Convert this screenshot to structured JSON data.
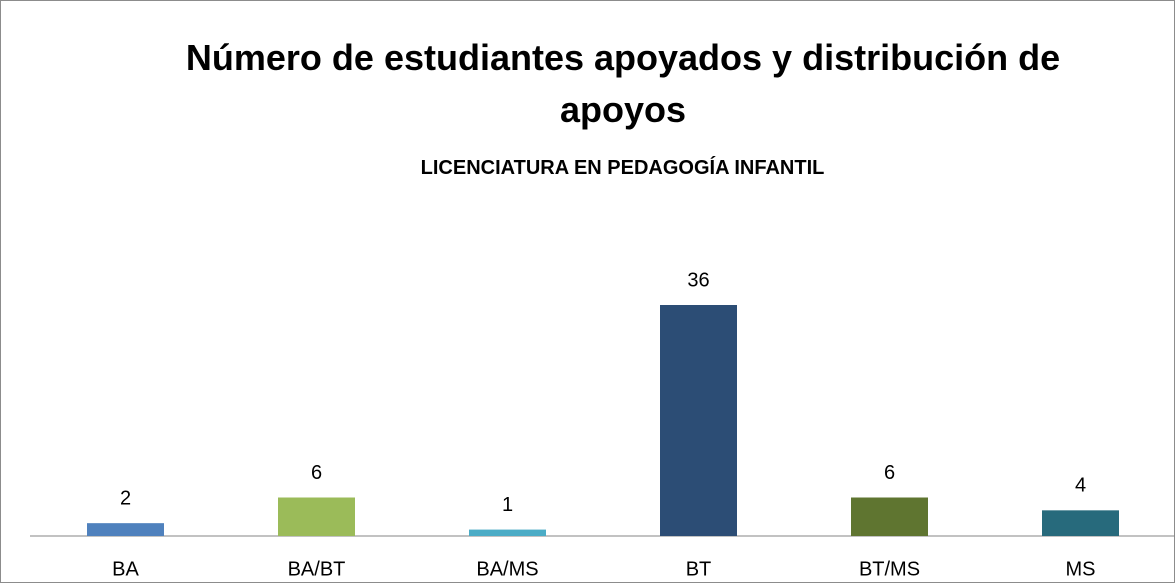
{
  "chart_data": {
    "type": "bar",
    "title": "Número de estudiantes apoyados y distribución de apoyos",
    "subtitle": "LICENCIATURA EN PEDAGOGÍA INFANTIL",
    "categories": [
      "BA",
      "BA/BT",
      "BA/MS",
      "BT",
      "BT/MS",
      "MS"
    ],
    "values": [
      2,
      6,
      1,
      36,
      6,
      4
    ],
    "colors": [
      "#4f81bd",
      "#9bbb59",
      "#4bacc6",
      "#2c4d75",
      "#5f7530",
      "#276a7c"
    ]
  }
}
